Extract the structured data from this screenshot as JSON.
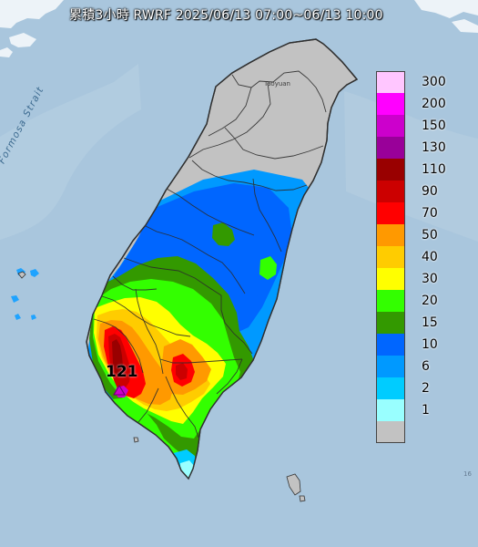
{
  "title": "累積3小時 RWRF 2025/06/13 07:00~06/13 10:00",
  "labels": {
    "strait": "Formosa Strait",
    "taoyuan": "Taoyuan",
    "maximum": "121",
    "edge_note": "16"
  },
  "legend": {
    "levels": [
      {
        "value": "300",
        "color": "#ffc6ff"
      },
      {
        "value": "200",
        "color": "#ff00ff"
      },
      {
        "value": "150",
        "color": "#cc00cc"
      },
      {
        "value": "130",
        "color": "#990099"
      },
      {
        "value": "110",
        "color": "#990000"
      },
      {
        "value": "90",
        "color": "#cc0000"
      },
      {
        "value": "70",
        "color": "#ff0000"
      },
      {
        "value": "50",
        "color": "#ff9900"
      },
      {
        "value": "40",
        "color": "#ffcc00"
      },
      {
        "value": "30",
        "color": "#ffff00"
      },
      {
        "value": "20",
        "color": "#33ff00"
      },
      {
        "value": "15",
        "color": "#339900"
      },
      {
        "value": "10",
        "color": "#0066ff"
      },
      {
        "value": "6",
        "color": "#0099ff"
      },
      {
        "value": "2",
        "color": "#00ccff"
      },
      {
        "value": "1",
        "color": "#99ffff"
      },
      {
        "value": "",
        "color": "#c2c2c2"
      }
    ]
  },
  "colors": {
    "sea": "#a9c6dd",
    "land_no_rain": "#c2c2c2",
    "county_border": "#2c2c2c",
    "max_marker": "#cc00cc"
  }
}
